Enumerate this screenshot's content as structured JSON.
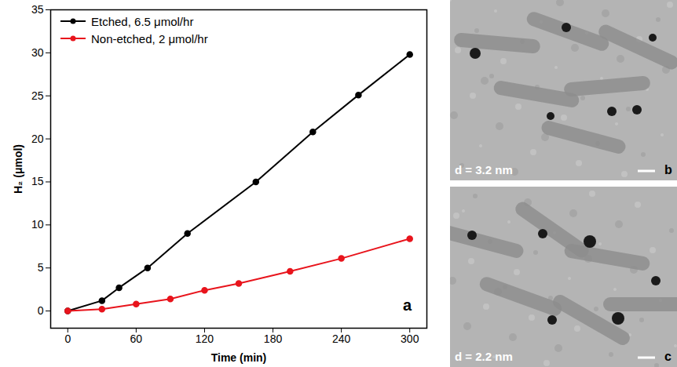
{
  "chart_data": {
    "type": "line",
    "x_label": "Time (min)",
    "y_label": "H₂ (μmol)",
    "annotation": "a",
    "legend": "top-left",
    "xlim": [
      -15,
      315
    ],
    "xticks": [
      0,
      60,
      120,
      180,
      240,
      300
    ],
    "ylim": [
      -2,
      35
    ],
    "yticks": [
      0,
      5,
      10,
      15,
      20,
      25,
      30,
      35
    ],
    "series": [
      {
        "name": "Etched, 6.5 μmol/hr",
        "color": "#000000",
        "marker": "circle",
        "line_style": "solid",
        "x": [
          0,
          30,
          45,
          70,
          105,
          165,
          215,
          255,
          300
        ],
        "values": [
          0,
          1.2,
          2.7,
          5,
          9,
          15,
          20.8,
          25.1,
          29.8
        ]
      },
      {
        "name": "Non-etched, 2 μmol/hr",
        "color": "#e8141c",
        "marker": "circle",
        "line_style": "solid",
        "x": [
          0,
          30,
          60,
          90,
          120,
          150,
          195,
          240,
          300
        ],
        "values": [
          0,
          0.2,
          0.8,
          1.4,
          2.4,
          3.2,
          4.6,
          6.1,
          8.4
        ]
      }
    ]
  },
  "images": [
    {
      "panel": "b",
      "caption": "d = 3.2 nm"
    },
    {
      "panel": "c",
      "caption": "d = 2.2 nm"
    }
  ]
}
